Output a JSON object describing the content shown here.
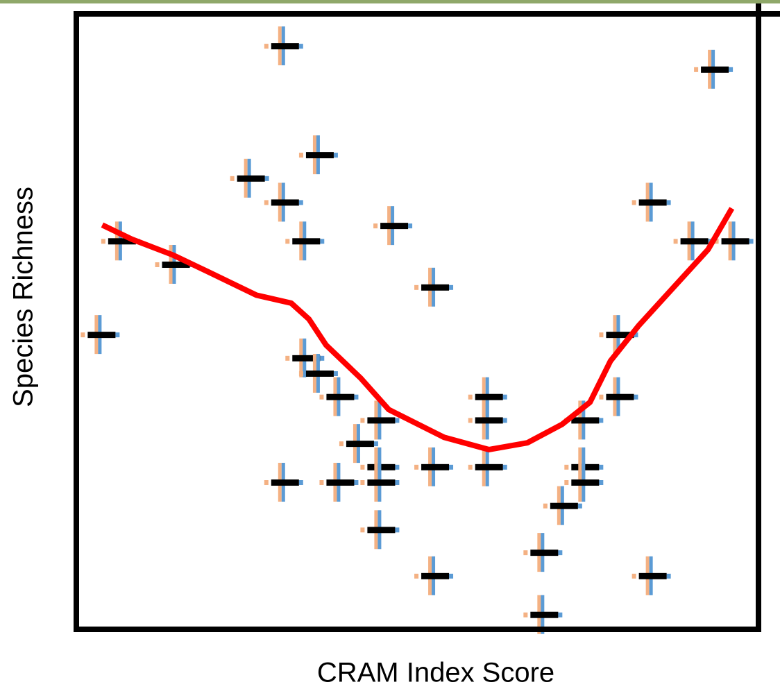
{
  "chart_data": {
    "type": "scatter",
    "xlabel": "CRAM Index Score",
    "ylabel": "Species Richness",
    "xlim": [
      0,
      100
    ],
    "ylim": [
      0,
      100
    ],
    "marker_colors": [
      "#f4b183",
      "#5b9bd5",
      "#000000"
    ],
    "points": {
      "x": [
        30.6,
        93.6,
        35.7,
        25.6,
        30.6,
        46.6,
        33.7,
        6.7,
        14.6,
        52.6,
        3.7,
        84.5,
        90.6,
        96.6,
        33.7,
        35.7,
        38.7,
        44.7,
        41.6,
        44.7,
        44.7,
        38.7,
        30.6,
        52.6,
        60.5,
        60.5,
        60.5,
        79.7,
        79.7,
        74.6,
        74.6,
        74.6,
        71.5,
        44.7,
        52.6,
        68.6,
        84.5,
        68.6
      ],
      "y": [
        94.8,
        91.0,
        77.1,
        73.3,
        69.4,
        65.6,
        63.1,
        63.1,
        59.3,
        55.6,
        47.9,
        69.4,
        63.1,
        63.1,
        44.1,
        41.6,
        37.8,
        34.0,
        30.2,
        26.4,
        23.9,
        23.9,
        23.9,
        26.4,
        37.8,
        34.0,
        26.4,
        47.9,
        37.8,
        34.0,
        26.4,
        23.9,
        20.1,
        16.2,
        8.7,
        12.5,
        8.7,
        2.4
      ]
    },
    "trend": {
      "color": "#ff0000",
      "x": [
        3.8,
        8.1,
        14.2,
        19.3,
        26.4,
        31.5,
        34.1,
        36.6,
        41.7,
        45.8,
        53.9,
        60.5,
        66.1,
        71.2,
        75.3,
        78.3,
        82.4,
        87.5,
        92.6,
        96.1
      ],
      "y": [
        65.7,
        63.4,
        60.8,
        58.1,
        54.3,
        53.0,
        50.4,
        46.2,
        40.8,
        35.7,
        31.2,
        29.2,
        30.3,
        33.3,
        36.9,
        43.6,
        49.3,
        55.5,
        61.7,
        68.4
      ]
    }
  }
}
